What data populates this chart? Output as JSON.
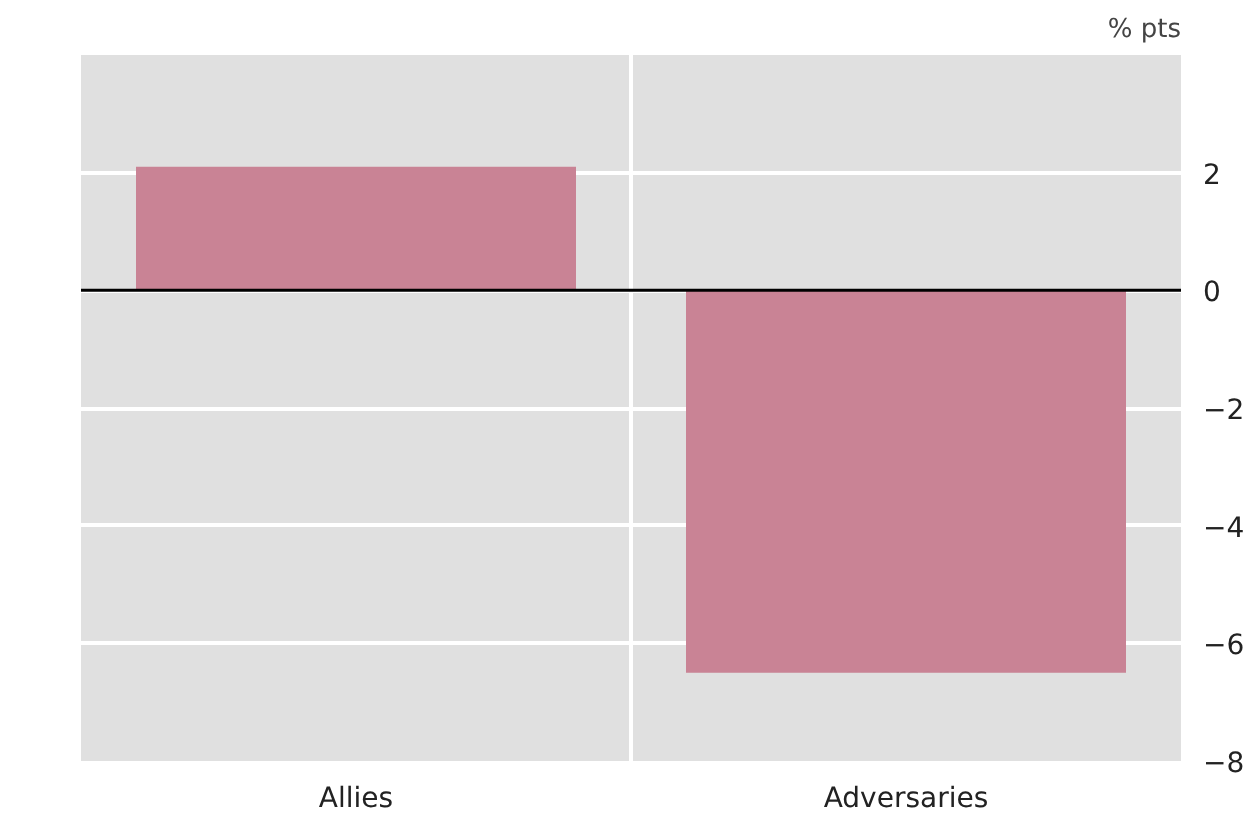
{
  "chart_data": {
    "type": "bar",
    "categories": [
      "Allies",
      "Adversaries"
    ],
    "values": [
      2.1,
      -6.5
    ],
    "color": "#c98395",
    "ylabel": "% pts",
    "ylim": [
      -8,
      4
    ],
    "yticks": [
      2,
      0,
      -2,
      -4,
      -6,
      -8
    ],
    "grid": true,
    "ref_lines": [
      {
        "axis": "y",
        "value": 0,
        "color": "#000000"
      }
    ]
  }
}
